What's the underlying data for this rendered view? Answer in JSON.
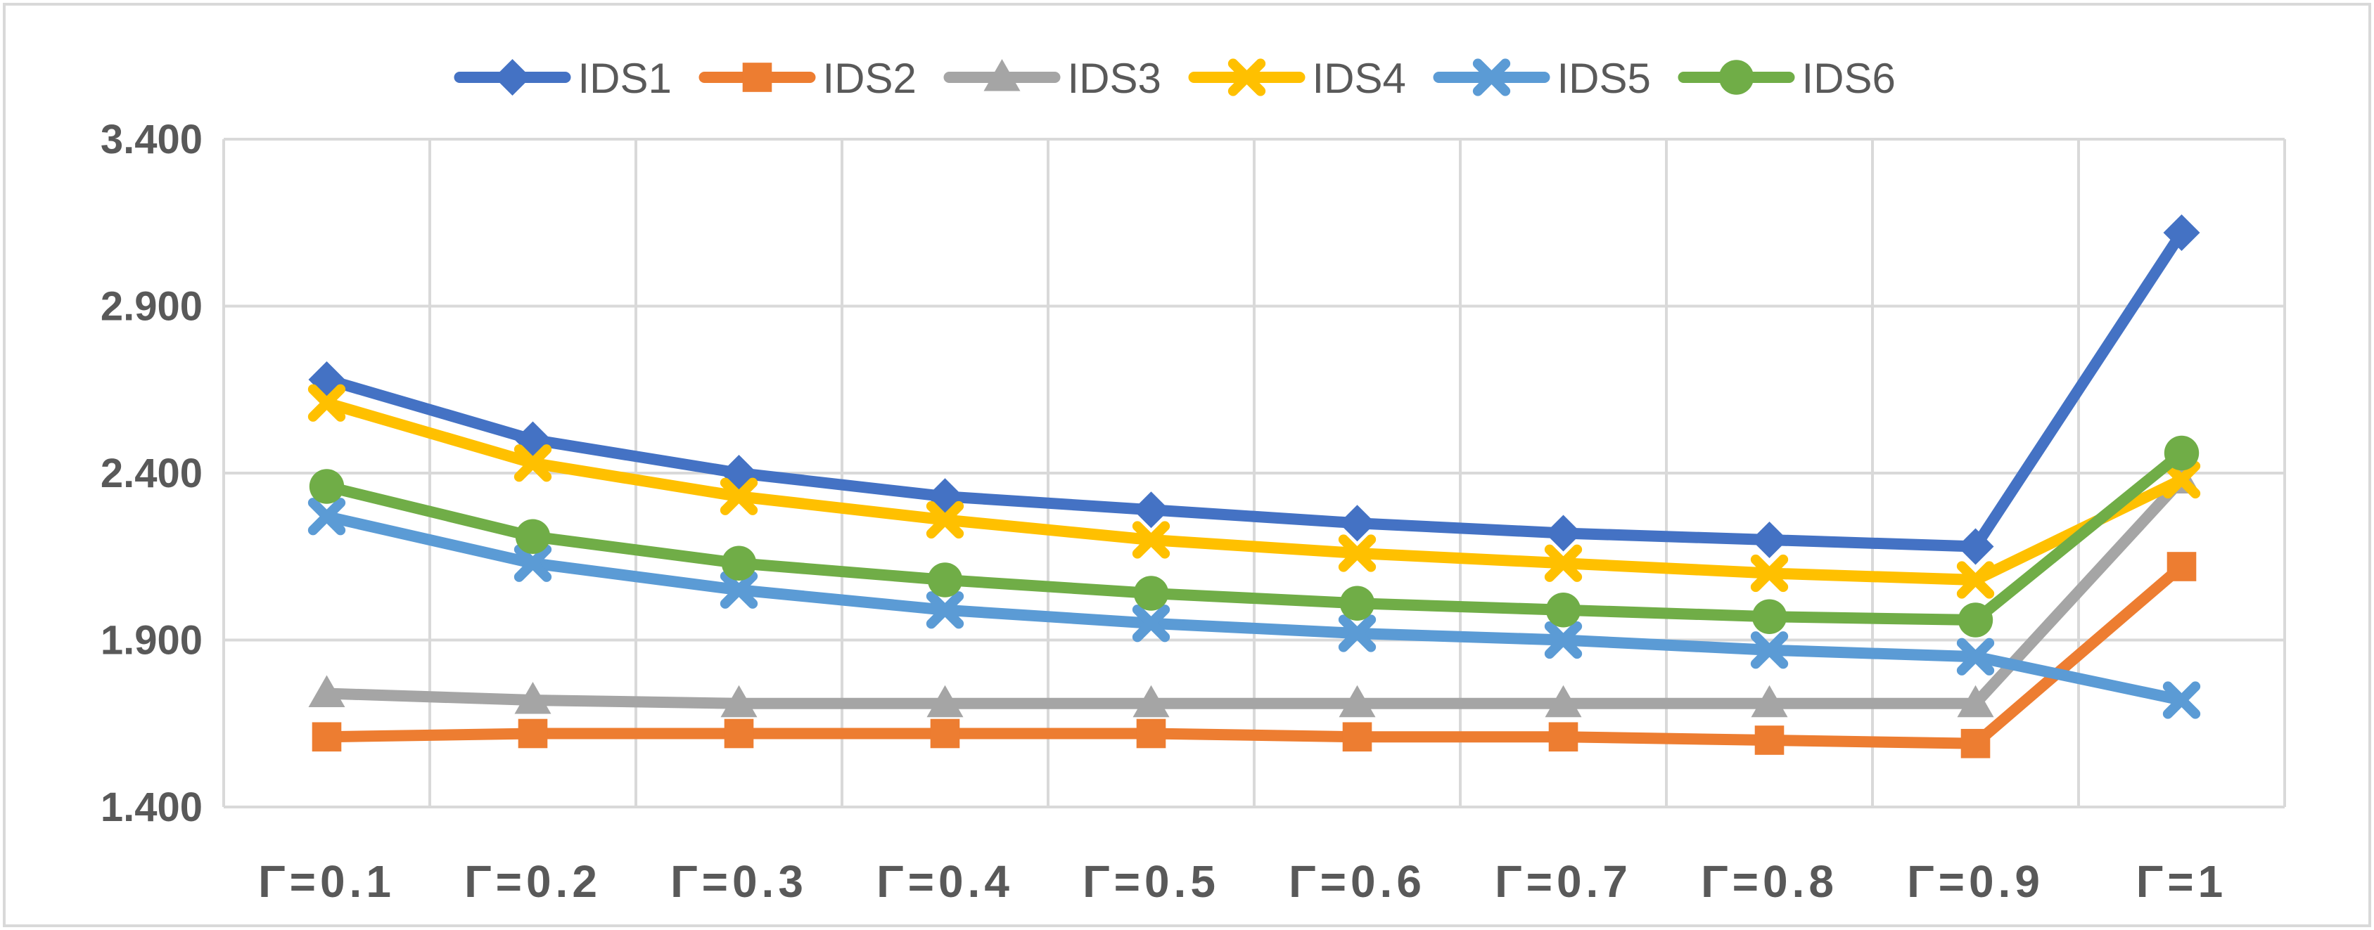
{
  "chart_data": {
    "type": "line",
    "title": "",
    "xlabel": "",
    "ylabel": "",
    "categories": [
      "Γ=0.1",
      "Γ=0.2",
      "Γ=0.3",
      "Γ=0.4",
      "Γ=0.5",
      "Γ=0.6",
      "Γ=0.7",
      "Γ=0.8",
      "Γ=0.9",
      "Γ=1"
    ],
    "ylim": [
      1.4,
      3.4
    ],
    "yticks": [
      1.4,
      1.9,
      2.4,
      2.9,
      3.4
    ],
    "ytick_labels": [
      "1.400",
      "1.900",
      "2.400",
      "2.900",
      "3.400"
    ],
    "grid": true,
    "legend_position": "top-center",
    "series": [
      {
        "name": "IDS1",
        "color": "#4472C4",
        "marker": "diamond",
        "values": [
          2.68,
          2.5,
          2.4,
          2.33,
          2.29,
          2.25,
          2.22,
          2.2,
          2.18,
          3.12
        ]
      },
      {
        "name": "IDS2",
        "color": "#ED7D31",
        "marker": "square",
        "values": [
          1.61,
          1.62,
          1.62,
          1.62,
          1.62,
          1.61,
          1.61,
          1.6,
          1.59,
          2.12
        ]
      },
      {
        "name": "IDS3",
        "color": "#A5A5A5",
        "marker": "triangle",
        "values": [
          1.74,
          1.72,
          1.71,
          1.71,
          1.71,
          1.71,
          1.71,
          1.71,
          1.71,
          2.38
        ]
      },
      {
        "name": "IDS4",
        "color": "#FFC000",
        "marker": "x",
        "values": [
          2.61,
          2.43,
          2.33,
          2.26,
          2.2,
          2.16,
          2.13,
          2.1,
          2.08,
          2.38
        ]
      },
      {
        "name": "IDS5",
        "color": "#5B9BD5",
        "marker": "x",
        "values": [
          2.27,
          2.13,
          2.05,
          1.99,
          1.95,
          1.92,
          1.9,
          1.87,
          1.85,
          1.72
        ]
      },
      {
        "name": "IDS6",
        "color": "#70AD47",
        "marker": "circle",
        "values": [
          2.36,
          2.21,
          2.13,
          2.08,
          2.04,
          2.01,
          1.99,
          1.97,
          1.96,
          2.46
        ]
      }
    ]
  }
}
